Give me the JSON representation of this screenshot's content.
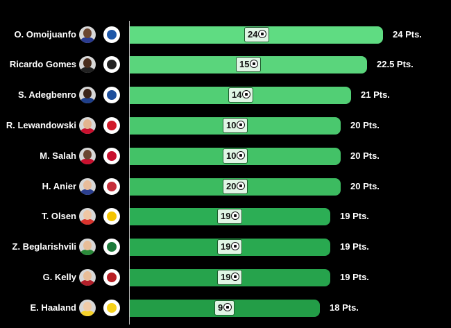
{
  "chart_data": {
    "type": "bar",
    "orientation": "horizontal",
    "categories": [
      "O. Omoijuanfo",
      "Ricardo Gomes",
      "S. Adegbenro",
      "R. Lewandowski",
      "M. Salah",
      "H. Anier",
      "T. Olsen",
      "Z. Beglarishvili",
      "G. Kelly",
      "E. Haaland"
    ],
    "values": [
      24,
      22.5,
      21,
      20,
      20,
      20,
      19,
      19,
      19,
      18
    ],
    "goals": [
      24,
      15,
      14,
      10,
      10,
      20,
      19,
      19,
      19,
      9
    ],
    "value_labels": [
      "24 Pts.",
      "22.5 Pts.",
      "21 Pts.",
      "20 Pts.",
      "20 Pts.",
      "20 Pts.",
      "19 Pts.",
      "19 Pts.",
      "19 Pts.",
      "18 Pts."
    ],
    "xlim": [
      0,
      24
    ],
    "grid": false,
    "bar_colors": [
      "#5fdc82",
      "#5ad57c",
      "#52cf75",
      "#4ac86e",
      "#43c267",
      "#3cbb60",
      "#2cae55",
      "#29a950",
      "#26a34c",
      "#239d47"
    ],
    "avatar_skin": [
      "#6b4630",
      "#4a2d1d",
      "#3b2418",
      "#e2b48f",
      "#6b4630",
      "#e8bc9a",
      "#eec6a4",
      "#e7bd98",
      "#e8bd98",
      "#f0cba8"
    ],
    "avatar_shirt": [
      "#2a3b8f",
      "#222222",
      "#1f3f8a",
      "#c8102e",
      "#c8102e",
      "#2b3f8f",
      "#d9332d",
      "#2a8a3a",
      "#b21f2a",
      "#f6d22b"
    ],
    "badge_colors": [
      "#1e57a8",
      "#222222",
      "#1e4f9c",
      "#d11a2a",
      "#c8102e",
      "#c62e3a",
      "#f4c400",
      "#1c7a3a",
      "#b81f24",
      "#f6d11a"
    ]
  }
}
